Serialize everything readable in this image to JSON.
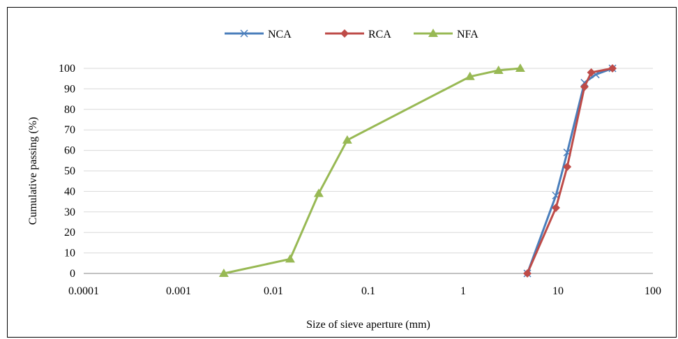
{
  "chart_data": {
    "type": "scatter",
    "title": "",
    "xlabel": "Size of sieve aperture (mm)",
    "ylabel": "Cumulative passing (%)",
    "xscale": "log",
    "xlim": [
      0.0001,
      100
    ],
    "ylim": [
      0,
      100
    ],
    "x_ticks": [
      "0.0001",
      "0.001",
      "0.01",
      "0.1",
      "1",
      "10",
      "100"
    ],
    "y_ticks": [
      "0",
      "10",
      "20",
      "30",
      "40",
      "50",
      "60",
      "70",
      "80",
      "90",
      "100"
    ],
    "grid": "horizontal",
    "legend": "top-center",
    "series": [
      {
        "name": "NCA",
        "color": "#4a7ebb",
        "marker": "x",
        "points": [
          [
            4.75,
            0
          ],
          [
            9.5,
            38
          ],
          [
            12.5,
            59
          ],
          [
            19,
            93
          ],
          [
            25,
            97
          ],
          [
            37.5,
            100
          ]
        ]
      },
      {
        "name": "RCA",
        "color": "#be4b48",
        "marker": "diamond",
        "points": [
          [
            4.75,
            0
          ],
          [
            9.5,
            32
          ],
          [
            12.5,
            52
          ],
          [
            19,
            91
          ],
          [
            22.4,
            98
          ],
          [
            37.5,
            100
          ]
        ]
      },
      {
        "name": "NFA",
        "color": "#98b954",
        "marker": "triangle",
        "points": [
          [
            0.003,
            0
          ],
          [
            0.015,
            7
          ],
          [
            0.03,
            39
          ],
          [
            0.06,
            65
          ],
          [
            1.18,
            96
          ],
          [
            2.36,
            99
          ],
          [
            4.0,
            100
          ]
        ]
      }
    ]
  }
}
